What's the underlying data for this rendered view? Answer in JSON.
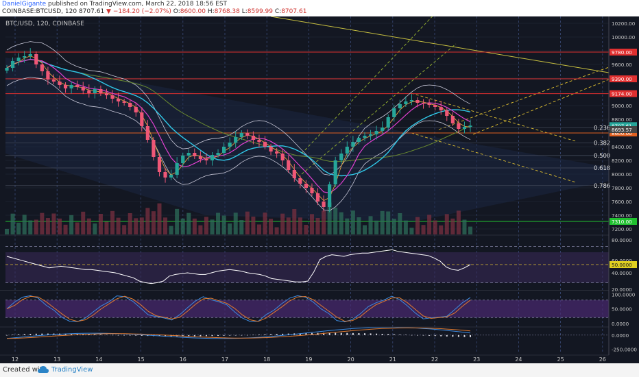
{
  "header": {
    "author": "DanielGigante",
    "published": "published on TradingView.com, March 22, 2018 18:56 EST",
    "symbol": "COINBASE:BTCUSD, 120",
    "last": "8707.61",
    "change": "▼ −184.20 (−2.07%)",
    "o_label": "O:",
    "o_value": "8600.00",
    "h_label": "H:",
    "h_value": "8768.38",
    "l_label": "L:",
    "l_value": "8599.99",
    "c_label": "C:",
    "c_value": "8707.61"
  },
  "footer": {
    "created": "Created with",
    "brand": "TradingView"
  },
  "chart_data": [
    {
      "type": "candlestick",
      "title": "BTC/USD, 120, COINBASE",
      "x_ticks": [
        "12",
        "13",
        "14",
        "15",
        "16",
        "17",
        "18",
        "19",
        "20",
        "21",
        "22",
        "23",
        "24",
        "25",
        "26"
      ],
      "y_ticks": [
        10200,
        10000,
        9800,
        9600,
        9400,
        9200,
        9000,
        8800,
        8600,
        8400,
        8200,
        8000,
        7800,
        7600,
        7400,
        7200
      ],
      "y_tick_labels": [
        "10200.00",
        "10000.00",
        "",
        "9600.00",
        "",
        "",
        "9000.00",
        "8800.00",
        "",
        "8400.00",
        "8200.00",
        "8000.00",
        "7800.00",
        "7600.00",
        "7400.00",
        "7200.00"
      ],
      "ylim": [
        7120,
        10300
      ],
      "horizontal_levels": [
        {
          "label": "9780.00",
          "value": 9780,
          "color": "#e03030"
        },
        {
          "label": "9390.00",
          "value": 9390,
          "color": "#e03030"
        },
        {
          "label": "9174.00",
          "value": 9174,
          "color": "#e03030"
        },
        {
          "label": "8600.00",
          "value": 8600,
          "color": "#e06020"
        },
        {
          "label": "7310.00",
          "value": 7310,
          "color": "#20c030"
        }
      ],
      "price_labels": [
        {
          "label": "8707.61",
          "value": 8707,
          "color": "#26a69a"
        },
        {
          "label": "8693.57",
          "value": 8650,
          "color": "#444444"
        }
      ],
      "fib_levels": [
        {
          "label": "0.236",
          "value": 8677
        },
        {
          "label": "0.382",
          "value": 8453
        },
        {
          "label": "0.500",
          "value": 8271
        },
        {
          "label": "0.618",
          "value": 8090
        },
        {
          "label": "0.786",
          "value": 7832
        }
      ],
      "close_series": [
        9550,
        9650,
        9700,
        9720,
        9750,
        9600,
        9500,
        9380,
        9350,
        9300,
        9250,
        9300,
        9270,
        9220,
        9180,
        9240,
        9180,
        9150,
        9100,
        9060,
        9040,
        8980,
        8900,
        8700,
        8500,
        8250,
        8030,
        7950,
        7990,
        8160,
        8270,
        8310,
        8260,
        8220,
        8200,
        8280,
        8310,
        8400,
        8460,
        8540,
        8600,
        8560,
        8500,
        8470,
        8400,
        8330,
        8300,
        8200,
        8060,
        7940,
        7860,
        7800,
        7720,
        7600,
        7520,
        7850,
        8200,
        8300,
        8400,
        8470,
        8530,
        8560,
        8580,
        8630,
        8680,
        8830,
        8960,
        9020,
        9060,
        9080,
        9040,
        9030,
        9010,
        8980,
        8930,
        8850,
        8740,
        8660,
        8690,
        8707
      ]
    },
    {
      "type": "line",
      "panel": "oscillator",
      "y_tick_labels": [
        "80.0000",
        "60.0000",
        "50.0000",
        "40.0000",
        "20.0000"
      ],
      "ylim": [
        20,
        85
      ],
      "highlight": "50.0000",
      "series_values": [
        60,
        58,
        56,
        54,
        52,
        50,
        48,
        46,
        47,
        48,
        47,
        46,
        45,
        44,
        44,
        43,
        42,
        41,
        40,
        38,
        36,
        34,
        30,
        28,
        27,
        28,
        30,
        36,
        38,
        39,
        40,
        39,
        38,
        38,
        40,
        42,
        43,
        44,
        43,
        42,
        40,
        39,
        38,
        36,
        33,
        32,
        31,
        30,
        29,
        29,
        30,
        41,
        56,
        60,
        62,
        61,
        60,
        62,
        63,
        64,
        64,
        65,
        66,
        67,
        68,
        66,
        65,
        64,
        63,
        62,
        61,
        58,
        54,
        47,
        44,
        43,
        46,
        50
      ]
    },
    {
      "type": "line",
      "panel": "stochastic",
      "y_tick_labels": [
        "100.0000",
        "50.0000",
        "0.0000"
      ],
      "ylim": [
        -10,
        110
      ]
    },
    {
      "type": "bar",
      "panel": "macd",
      "y_tick_labels": [
        "0.0000",
        "-250.0000"
      ],
      "ylim": [
        -330,
        120
      ]
    }
  ]
}
